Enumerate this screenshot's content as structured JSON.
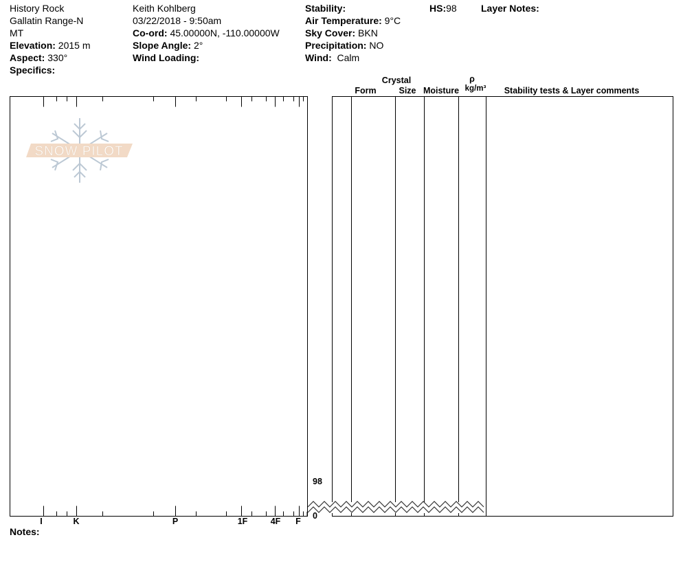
{
  "location": {
    "name": "History Rock",
    "range": "Gallatin Range-N",
    "state": "MT",
    "elevation_label": "Elevation:",
    "elevation": "2015 m",
    "aspect_label": "Aspect:",
    "aspect": "330°",
    "specifics_label": "Specifics:"
  },
  "observer": {
    "name": "Keith Kohlberg",
    "datetime": "03/22/2018 - 9:50am",
    "coord_label": "Co-ord:",
    "coord": "45.00000N, -110.00000W",
    "slope_label": "Slope Angle:",
    "slope": "2°",
    "wind_loading_label": "Wind Loading:"
  },
  "conditions": {
    "stability_label": "Stability:",
    "air_temp_label": "Air Temperature:",
    "air_temp": "9°C",
    "sky_label": "Sky Cover:",
    "sky": "BKN",
    "precip_label": "Precipitation:",
    "precip": "NO",
    "wind_label": "Wind:",
    "wind": "Calm"
  },
  "hs": {
    "label": "HS:",
    "value": "98"
  },
  "layer_notes_label": "Layer Notes:",
  "table_headers": {
    "crystal": "Crystal",
    "form": "Form",
    "size": "Size",
    "moisture": "Moisture",
    "rho": "ρ",
    "density_unit": "kg/m³",
    "comments": "Stability tests & Layer comments"
  },
  "depth_axis": {
    "top": "98",
    "bottom": "0"
  },
  "hardness_axis": [
    "I",
    "K",
    "P",
    "1F",
    "4F",
    "F"
  ],
  "notes_label": "Notes:",
  "logo_text": "SNOW PILOT",
  "colors": {
    "logo_band": "#f2d9c4",
    "logo_flake": "#b9c6d2"
  }
}
